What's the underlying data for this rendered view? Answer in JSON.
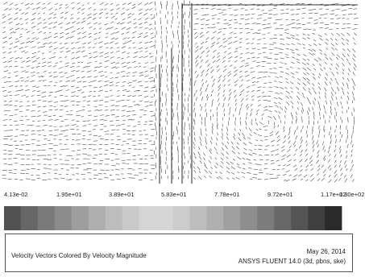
{
  "legend": {
    "tick_labels": [
      "4.13e-02",
      "1.95e+01",
      "3.89e+01",
      "5.83e+01",
      "7.78e+01",
      "9.72e+01",
      "1.17e+02",
      "1.30e+02"
    ],
    "min": 0.0413,
    "max": 130,
    "band_count": 20
  },
  "info": {
    "caption": "Velocity Vectors Colored By Velocity Magnitude",
    "date": "May 26, 2014",
    "solver": "ANSYS FLUENT 14.0 (3d, pbns, ske)"
  },
  "colors": {
    "vector": "#4a4a4a",
    "legend_light": "#d9d9d9",
    "legend_dark": "#2a2a2a"
  }
}
